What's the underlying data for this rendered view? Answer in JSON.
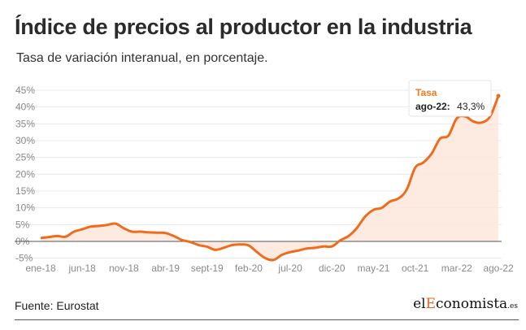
{
  "header": {
    "title": "Índice de precios al productor en la industria",
    "subtitle": "Tasa de variación interanual, en porcentaje."
  },
  "footer": {
    "source": "Fuente: Eurostat",
    "logo_prefix": "el",
    "logo_accent": "E",
    "logo_main": "conomista",
    "logo_tld": ".es"
  },
  "tooltip": {
    "series": "Tasa",
    "label": "ago-22:",
    "value": "43,3%"
  },
  "colors": {
    "line": "#ee6c1c",
    "area": "#fde8dc",
    "zero_line": "#555555",
    "grid": "#e9e9e9"
  },
  "chart_data": {
    "type": "area",
    "title": "Índice de precios al productor en la industria",
    "subtitle": "Tasa de variación interanual, en porcentaje.",
    "ylim": [
      -5,
      45
    ],
    "yticks": [
      -5,
      0,
      5,
      10,
      15,
      20,
      25,
      30,
      35,
      40,
      45
    ],
    "ytick_labels": [
      "-5%",
      "0%",
      "5%",
      "10%",
      "15%",
      "20%",
      "25%",
      "30%",
      "35%",
      "40%",
      "45%"
    ],
    "xtick_labels": [
      "ene-18",
      "jun-18",
      "nov-18",
      "abr-19",
      "sept-19",
      "feb-20",
      "jul-20",
      "dic-20",
      "may-21",
      "oct-21",
      "mar-22",
      "ago-22"
    ],
    "grid": true,
    "series": [
      {
        "name": "Tasa",
        "x": [
          "ene-18",
          "feb-18",
          "mar-18",
          "abr-18",
          "may-18",
          "jun-18",
          "jul-18",
          "ago-18",
          "sept-18",
          "oct-18",
          "nov-18",
          "dic-18",
          "ene-19",
          "feb-19",
          "mar-19",
          "abr-19",
          "may-19",
          "jun-19",
          "jul-19",
          "ago-19",
          "sept-19",
          "oct-19",
          "nov-19",
          "dic-19",
          "ene-20",
          "feb-20",
          "mar-20",
          "abr-20",
          "may-20",
          "jun-20",
          "jul-20",
          "ago-20",
          "sept-20",
          "oct-20",
          "nov-20",
          "dic-20",
          "ene-21",
          "feb-21",
          "mar-21",
          "abr-21",
          "may-21",
          "jun-21",
          "jul-21",
          "ago-21",
          "sept-21",
          "oct-21",
          "nov-21",
          "dic-21",
          "ene-22",
          "feb-22",
          "mar-22",
          "abr-22",
          "may-22",
          "jun-22",
          "jul-22",
          "ago-22"
        ],
        "values": [
          1.0,
          1.3,
          1.6,
          1.4,
          2.9,
          3.6,
          4.4,
          4.6,
          4.9,
          5.3,
          3.9,
          2.9,
          2.9,
          2.7,
          2.6,
          2.5,
          1.6,
          0.4,
          -0.2,
          -1.1,
          -1.6,
          -2.5,
          -1.9,
          -1.1,
          -0.9,
          -1.2,
          -3.2,
          -5.0,
          -5.5,
          -4.0,
          -3.2,
          -2.7,
          -2.1,
          -1.9,
          -1.5,
          -1.5,
          0.3,
          1.6,
          4.0,
          7.4,
          9.4,
          10.0,
          11.9,
          12.8,
          15.5,
          21.9,
          23.5,
          26.2,
          30.6,
          31.5,
          36.6,
          37.2,
          35.7,
          35.4,
          37.2,
          43.3
        ]
      }
    ]
  }
}
